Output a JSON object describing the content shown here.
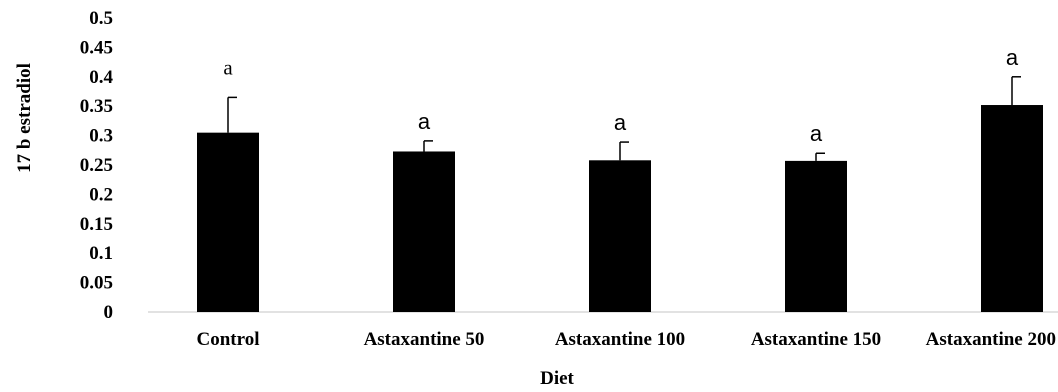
{
  "chart_data": {
    "type": "bar",
    "categories": [
      "Control",
      "Astaxantine 50",
      "Astaxantine 100",
      "Astaxantine 150",
      "Astaxantine 200"
    ],
    "values": [
      0.305,
      0.273,
      0.258,
      0.257,
      0.352
    ],
    "error_bars": [
      0.06,
      0.018,
      0.031,
      0.013,
      0.048
    ],
    "data_labels": [
      "a",
      "a",
      "a",
      "a",
      "a"
    ],
    "title": "",
    "xlabel": "Diet",
    "ylabel": "17 b estradiol",
    "ylim": [
      0,
      0.5
    ],
    "yticks": [
      "0",
      "0.05",
      "0.1",
      "0.15",
      "0.2",
      "0.25",
      "0.3",
      "0.35",
      "0.4",
      "0.45",
      "0.5"
    ],
    "grid": false,
    "legend": "none",
    "bar_color": "#000000"
  }
}
